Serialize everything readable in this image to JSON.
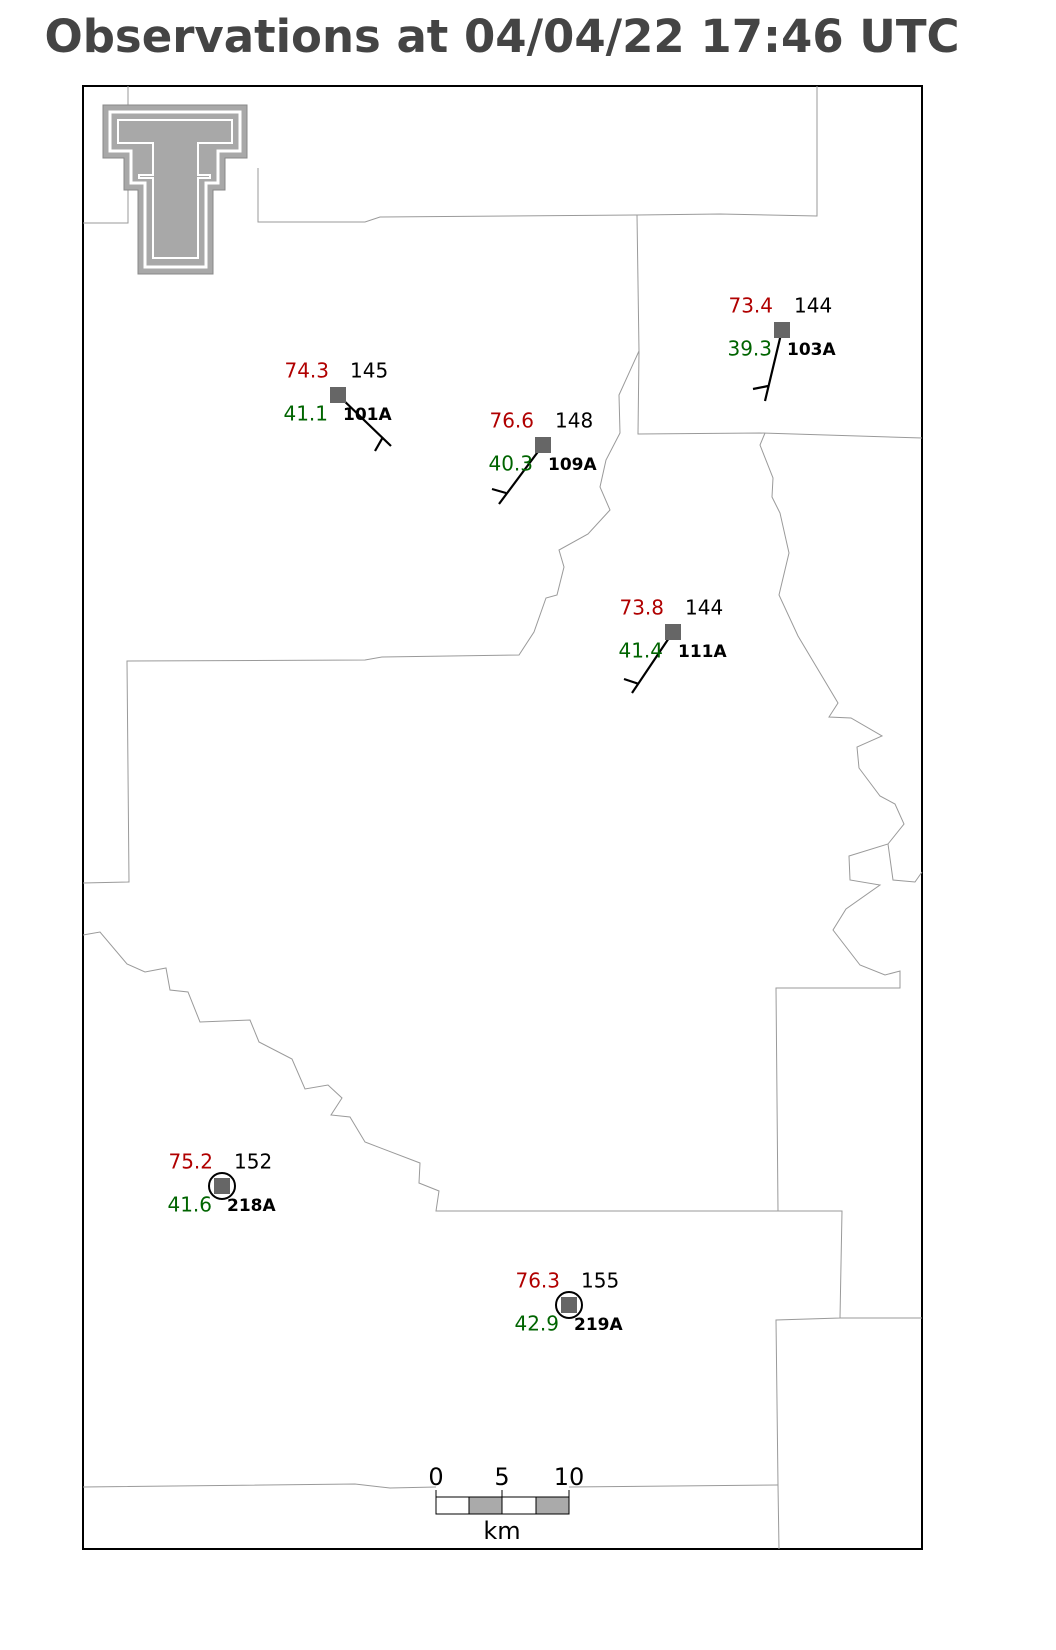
{
  "title": "Observations at 04/04/22 17:46 UTC",
  "stations": [
    {
      "id": "101A",
      "temperature": 74.3,
      "dewpoint": 41.1,
      "pressure": 145
    },
    {
      "id": "103A",
      "temperature": 73.4,
      "dewpoint": 39.3,
      "pressure": 144
    },
    {
      "id": "109A",
      "temperature": 76.6,
      "dewpoint": 40.3,
      "pressure": 148
    },
    {
      "id": "111A",
      "temperature": 73.8,
      "dewpoint": 41.4,
      "pressure": 144
    },
    {
      "id": "218A",
      "temperature": 75.2,
      "dewpoint": 41.6,
      "pressure": 152
    },
    {
      "id": "219A",
      "temperature": 76.3,
      "dewpoint": 42.9,
      "pressure": 155
    }
  ],
  "scale_bar": {
    "ticks": [
      0,
      5,
      10
    ],
    "unit": "km"
  }
}
